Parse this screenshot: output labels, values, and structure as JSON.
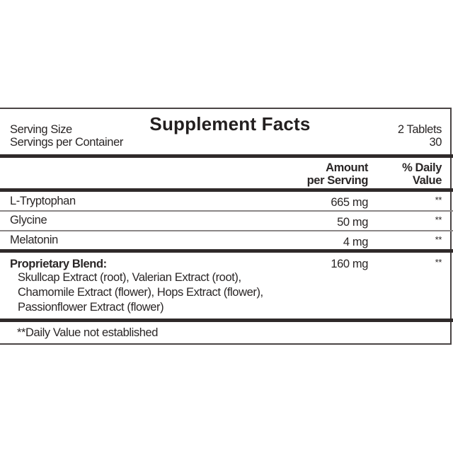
{
  "title": "Supplement Facts",
  "serving_size": {
    "label": "Serving Size",
    "value": "2 Tablets"
  },
  "servings_per_container": {
    "label": "Servings per Container",
    "value": "30"
  },
  "columns": {
    "amount_line1": "Amount",
    "amount_line2": "per Serving",
    "dv_line1": "% Daily",
    "dv_line2": "Value"
  },
  "rows": [
    {
      "name": "L-Tryptophan",
      "amount": "665 mg",
      "dv": "**"
    },
    {
      "name": "Glycine",
      "amount": "50 mg",
      "dv": "**"
    },
    {
      "name": "Melatonin",
      "amount": "4 mg",
      "dv": "**"
    }
  ],
  "blend": {
    "name": "Proprietary Blend:",
    "amount": "160 mg",
    "dv": "**",
    "ingredients": [
      "Skullcap Extract (root), Valerian Extract (root),",
      "Chamomile Extract (flower), Hops Extract (flower),",
      "Passionflower Extract (flower)"
    ]
  },
  "footnote": "**Daily Value not established"
}
